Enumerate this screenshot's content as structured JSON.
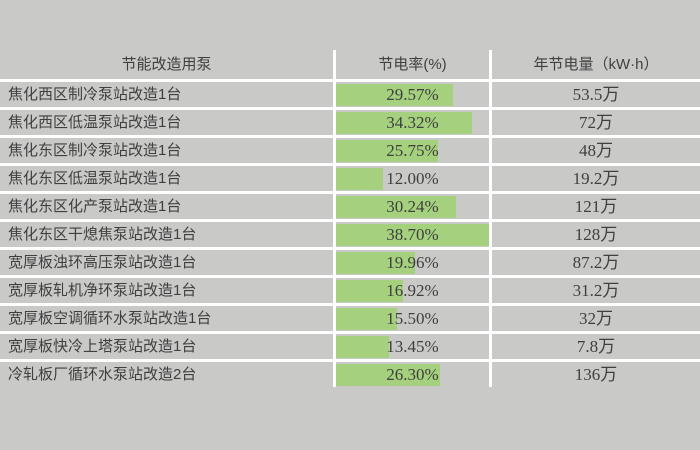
{
  "table": {
    "headers": [
      "节能改造用泵",
      "节电率(%)",
      "年节电量（kW·h）"
    ],
    "rows": [
      {
        "name": "焦化西区制冷泵站改造1台",
        "rate": "29.57%",
        "rate_value": 29.57,
        "annual": "53.5万"
      },
      {
        "name": "焦化西区低温泵站改造1台",
        "rate": "34.32%",
        "rate_value": 34.32,
        "annual": "72万"
      },
      {
        "name": "焦化东区制冷泵站改造1台",
        "rate": "25.75%",
        "rate_value": 25.75,
        "annual": "48万"
      },
      {
        "name": "焦化东区低温泵站改造1台",
        "rate": "12.00%",
        "rate_value": 12.0,
        "annual": "19.2万"
      },
      {
        "name": "焦化东区化产泵站改造1台",
        "rate": "30.24%",
        "rate_value": 30.24,
        "annual": "121万"
      },
      {
        "name": "焦化东区干熄焦泵站改造1台",
        "rate": "38.70%",
        "rate_value": 38.7,
        "annual": "128万"
      },
      {
        "name": "宽厚板浊环高压泵站改造1台",
        "rate": "19.96%",
        "rate_value": 19.96,
        "annual": "87.2万"
      },
      {
        "name": "宽厚板轧机净环泵站改造1台",
        "rate": "16.92%",
        "rate_value": 16.92,
        "annual": "31.2万"
      },
      {
        "name": "宽厚板空调循环水泵站改造1台",
        "rate": "15.50%",
        "rate_value": 15.5,
        "annual": "32万"
      },
      {
        "name": "宽厚板快冷上塔泵站改造1台",
        "rate": "13.45%",
        "rate_value": 13.45,
        "annual": "7.8万"
      },
      {
        "name": "冷轧板厂循环水泵站改造2台",
        "rate": "26.30%",
        "rate_value": 26.3,
        "annual": "136万"
      }
    ],
    "bar_scale_max": 38.7
  },
  "colors": {
    "page_bg": "#c9cac8",
    "grid_line": "#ffffff",
    "data_bar_green": "#a5d07d",
    "text": "#3f3f3f"
  },
  "chart_data": {
    "type": "table",
    "title": "",
    "columns": [
      "节能改造用泵",
      "节电率(%)",
      "年节电量（kW·h）"
    ],
    "categories": [
      "焦化西区制冷泵站改造1台",
      "焦化西区低温泵站改造1台",
      "焦化东区制冷泵站改造1台",
      "焦化东区低温泵站改造1台",
      "焦化东区化产泵站改造1台",
      "焦化东区干熄焦泵站改造1台",
      "宽厚板浊环高压泵站改造1台",
      "宽厚板轧机净环泵站改造1台",
      "宽厚板空调循环水泵站改造1台",
      "宽厚板快冷上塔泵站改造1台",
      "冷轧板厂循环水泵站改造2台"
    ],
    "series": [
      {
        "name": "节电率",
        "unit": "%",
        "values": [
          29.57,
          34.32,
          25.75,
          12.0,
          30.24,
          38.7,
          19.96,
          16.92,
          15.5,
          13.45,
          26.3
        ],
        "display": "in-cell data bars, scaled so 38.70% = full cell width"
      },
      {
        "name": "年节电量",
        "unit": "万kW·h",
        "values": [
          53.5,
          72,
          48,
          19.2,
          121,
          128,
          87.2,
          31.2,
          32,
          7.8,
          136
        ]
      }
    ]
  }
}
